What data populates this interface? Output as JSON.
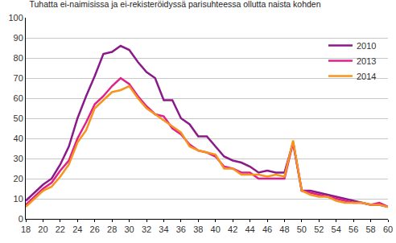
{
  "chart_data": {
    "type": "line",
    "title": "Tuhatta ei-naimisissa ja ei-rekisteröidyssä parisuhteessa ollutta naista kohden",
    "x": [
      18,
      19,
      20,
      21,
      22,
      23,
      24,
      25,
      26,
      27,
      28,
      29,
      30,
      31,
      32,
      33,
      34,
      35,
      36,
      37,
      38,
      39,
      40,
      41,
      42,
      43,
      44,
      45,
      46,
      47,
      48,
      49,
      50,
      51,
      52,
      53,
      54,
      55,
      56,
      57,
      58,
      59,
      60
    ],
    "series": [
      {
        "name": "2010",
        "color": "#8b1a89",
        "values": [
          9,
          13,
          17,
          20,
          27,
          36,
          50,
          61,
          71,
          82,
          83,
          86,
          84,
          78,
          73,
          70,
          59,
          59,
          50,
          47,
          41,
          41,
          36,
          31,
          29,
          28,
          26,
          23,
          24,
          23,
          23,
          38,
          14,
          14,
          13,
          12,
          11,
          10,
          9,
          8,
          7,
          7,
          6
        ]
      },
      {
        "name": "2013",
        "color": "#e0218a",
        "values": [
          7,
          11,
          15,
          18,
          24,
          29,
          40,
          48,
          57,
          61,
          66,
          70,
          67,
          61,
          56,
          52,
          51,
          45,
          42,
          37,
          34,
          33,
          31,
          26,
          25,
          23,
          23,
          20,
          20,
          20,
          20,
          38,
          14,
          13,
          12,
          11,
          10,
          9,
          8,
          8,
          7,
          8,
          6
        ]
      },
      {
        "name": "2014",
        "color": "#f7941d",
        "values": [
          6,
          10,
          14,
          16,
          21,
          27,
          38,
          44,
          55,
          59,
          63,
          64,
          66,
          60,
          55,
          52,
          49,
          46,
          43,
          36,
          34,
          33,
          32,
          25,
          25,
          22,
          22,
          22,
          21,
          22,
          21,
          39,
          14,
          12,
          11,
          11,
          9,
          8,
          8,
          8,
          7,
          7,
          6
        ]
      }
    ],
    "xlim": [
      18,
      60
    ],
    "xticks": [
      18,
      20,
      22,
      24,
      26,
      28,
      30,
      32,
      34,
      36,
      38,
      40,
      42,
      44,
      46,
      48,
      50,
      52,
      54,
      56,
      58,
      60
    ],
    "ylim": [
      0,
      100
    ],
    "yticks": [
      0,
      10,
      20,
      30,
      40,
      50,
      60,
      70,
      80,
      90,
      100
    ],
    "grid": true,
    "legend": "upper right"
  }
}
